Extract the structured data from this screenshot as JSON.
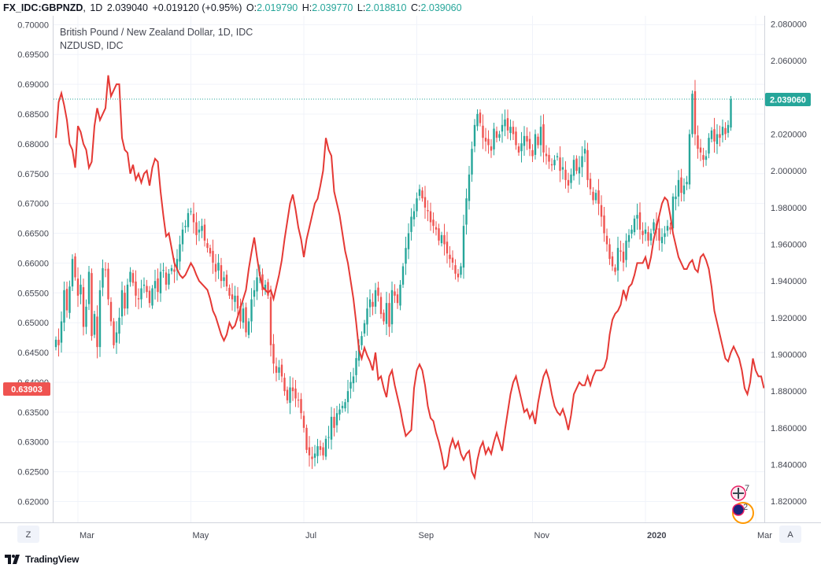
{
  "header": {
    "symbol": "FX_IDC:GBPNZD",
    "interval": "1D",
    "last": "2.039040",
    "change": "+0.019120 (+0.95%)",
    "open_label": "O:",
    "open": "2.019790",
    "high_label": "H:",
    "high": "2.039770",
    "low_label": "L:",
    "low": "2.018810",
    "close_label": "C:",
    "close": "2.039060"
  },
  "legend": {
    "main_series": "British Pound / New Zealand Dollar, 1D, IDC",
    "overlay_series": "NZDUSD, IDC"
  },
  "footer": {
    "brand": "TradingView"
  },
  "buttons": {
    "left_scale": "Z",
    "right_scale": "A"
  },
  "event_markers": [
    "7",
    "2"
  ],
  "colors": {
    "up": "#26a69a",
    "down": "#ef5350",
    "overlay_line": "#e53935",
    "last_price_badge": "#26a69a",
    "overlay_badge": "#ef5350",
    "grid": "#f0f3fa"
  },
  "chart_data": {
    "type": "candlestick",
    "left_axis": {
      "label": "NZDUSD",
      "range": [
        0.6165,
        0.7015
      ],
      "ticks": [
        "0.70000",
        "0.69500",
        "0.69000",
        "0.68500",
        "0.68000",
        "0.67500",
        "0.67000",
        "0.66500",
        "0.66000",
        "0.65500",
        "0.65000",
        "0.64500",
        "0.64000",
        "0.63500",
        "0.63000",
        "0.62500",
        "0.62000"
      ],
      "last_value_badge": "0.63903"
    },
    "right_axis": {
      "label": "GBPNZD",
      "range": [
        1.8085,
        2.0845
      ],
      "ticks": [
        "2.080000",
        "2.060000",
        "2.040000",
        "2.020000",
        "2.000000",
        "1.980000",
        "1.960000",
        "1.940000",
        "1.920000",
        "1.900000",
        "1.880000",
        "1.860000",
        "1.840000",
        "1.820000"
      ],
      "last_value_badge": "2.039060"
    },
    "x_axis": {
      "months": [
        "Mar",
        "May",
        "Jul",
        "Sep",
        "Nov",
        "2020",
        "Mar"
      ],
      "month_index": [
        8,
        49,
        90,
        131,
        173,
        214,
        254
      ]
    },
    "gbpnzd_close": [
      1.908,
      1.905,
      1.918,
      1.935,
      1.924,
      1.937,
      1.952,
      1.942,
      1.932,
      1.938,
      1.915,
      1.926,
      1.945,
      1.91,
      1.922,
      1.904,
      1.935,
      1.947,
      1.946,
      1.93,
      1.918,
      1.905,
      1.912,
      1.92,
      1.935,
      1.925,
      1.938,
      1.945,
      1.939,
      1.932,
      1.93,
      1.936,
      1.938,
      1.934,
      1.928,
      1.936,
      1.94,
      1.934,
      1.945,
      1.946,
      1.938,
      1.944,
      1.947,
      1.945,
      1.952,
      1.96,
      1.968,
      1.97,
      1.977,
      1.978,
      1.972,
      1.965,
      1.968,
      1.97,
      1.962,
      1.958,
      1.955,
      1.95,
      1.945,
      1.95,
      1.94,
      1.942,
      1.937,
      1.932,
      1.93,
      1.932,
      1.925,
      1.918,
      1.925,
      1.912,
      1.918,
      1.93,
      1.935,
      1.942,
      1.945,
      1.935,
      1.938,
      1.932,
      1.905,
      1.895,
      1.89,
      1.893,
      1.888,
      1.88,
      1.875,
      1.882,
      1.88,
      1.876,
      1.875,
      1.868,
      1.86,
      1.848,
      1.845,
      1.843,
      1.846,
      1.85,
      1.848,
      1.845,
      1.854,
      1.855,
      1.866,
      1.86,
      1.868,
      1.87,
      1.872,
      1.874,
      1.88,
      1.885,
      1.888,
      1.898,
      1.905,
      1.91,
      1.917,
      1.925,
      1.93,
      1.926,
      1.935,
      1.932,
      1.922,
      1.918,
      1.928,
      1.915,
      1.935,
      1.932,
      1.928,
      1.938,
      1.948,
      1.958,
      1.966,
      1.975,
      1.978,
      1.985,
      1.99,
      1.985,
      1.98,
      1.978,
      1.972,
      1.97,
      1.968,
      1.962,
      1.965,
      1.96,
      1.955,
      1.952,
      1.95,
      1.944,
      1.942,
      1.948,
      1.97,
      1.985,
      1.998,
      2.012,
      2.025,
      2.031,
      2.026,
      2.018,
      2.016,
      2.014,
      2.011,
      2.023,
      2.018,
      2.02,
      2.025,
      2.028,
      2.022,
      2.024,
      2.02,
      2.014,
      2.01,
      2.015,
      2.019,
      2.016,
      2.012,
      2.008,
      2.02,
      2.014,
      2.024,
      2.01,
      2.008,
      2.005,
      2.003,
      2.006,
      2.008,
      2.0,
      2.002,
      1.995,
      1.992,
      1.998,
      2.006,
      2.0,
      2.002,
      2.008,
      2.012,
      1.995,
      1.99,
      1.984,
      1.988,
      1.982,
      1.975,
      1.966,
      1.96,
      1.952,
      1.948,
      1.945,
      1.958,
      1.956,
      1.95,
      1.962,
      1.965,
      1.968,
      1.974,
      1.976,
      1.968,
      1.965,
      1.968,
      1.962,
      1.966,
      1.972,
      1.968,
      1.962,
      1.964,
      1.966,
      1.97,
      1.968,
      1.986,
      1.986,
      1.995,
      1.988,
      1.992,
      1.994,
      2.02,
      2.042,
      2.02,
      2.012,
      2.01,
      2.006,
      2.008,
      2.018,
      2.022,
      2.016,
      2.02,
      2.018,
      2.024,
      2.02,
      2.025,
      2.039
    ],
    "nzdusd_close": [
      0.681,
      0.687,
      0.6885,
      0.6865,
      0.684,
      0.68,
      0.679,
      0.676,
      0.683,
      0.682,
      0.68,
      0.679,
      0.676,
      0.677,
      0.683,
      0.686,
      0.684,
      0.685,
      0.686,
      0.6915,
      0.688,
      0.689,
      0.69,
      0.69,
      0.681,
      0.679,
      0.6785,
      0.675,
      0.6765,
      0.674,
      0.675,
      0.6735,
      0.675,
      0.6755,
      0.673,
      0.676,
      0.6775,
      0.677,
      0.672,
      0.668,
      0.6645,
      0.665,
      0.6625,
      0.66,
      0.659,
      0.658,
      0.6575,
      0.658,
      0.659,
      0.66,
      0.6592,
      0.658,
      0.657,
      0.6565,
      0.656,
      0.6555,
      0.654,
      0.652,
      0.651,
      0.6495,
      0.648,
      0.647,
      0.648,
      0.65,
      0.649,
      0.6495,
      0.651,
      0.6525,
      0.654,
      0.6555,
      0.659,
      0.6618,
      0.6643,
      0.661,
      0.658,
      0.656,
      0.6555,
      0.655,
      0.6555,
      0.654,
      0.656,
      0.658,
      0.6605,
      0.664,
      0.667,
      0.67,
      0.6715,
      0.669,
      0.666,
      0.664,
      0.661,
      0.664,
      0.666,
      0.668,
      0.67,
      0.6708,
      0.673,
      0.6755,
      0.681,
      0.679,
      0.678,
      0.672,
      0.67,
      0.668,
      0.665,
      0.662,
      0.66,
      0.657,
      0.654,
      0.65,
      0.6455,
      0.644,
      0.6458,
      0.6445,
      0.6435,
      0.642,
      0.645,
      0.6405,
      0.641,
      0.639,
      0.6375,
      0.641,
      0.642,
      0.6395,
      0.6375,
      0.6355,
      0.633,
      0.631,
      0.6315,
      0.632,
      0.639,
      0.642,
      0.643,
      0.642,
      0.6395,
      0.636,
      0.634,
      0.6335,
      0.6315,
      0.63,
      0.628,
      0.6255,
      0.626,
      0.629,
      0.6305,
      0.629,
      0.63,
      0.628,
      0.627,
      0.628,
      0.6285,
      0.625,
      0.624,
      0.627,
      0.629,
      0.63,
      0.628,
      0.629,
      0.628,
      0.63,
      0.6315,
      0.63,
      0.6285,
      0.632,
      0.635,
      0.638,
      0.64,
      0.641,
      0.639,
      0.637,
      0.635,
      0.6355,
      0.634,
      0.635,
      0.633,
      0.6365,
      0.639,
      0.641,
      0.642,
      0.6405,
      0.638,
      0.636,
      0.635,
      0.6345,
      0.6355,
      0.634,
      0.632,
      0.6345,
      0.638,
      0.639,
      0.64,
      0.6395,
      0.6395,
      0.641,
      0.6395,
      0.641,
      0.642,
      0.642,
      0.642,
      0.6425,
      0.644,
      0.648,
      0.6505,
      0.6515,
      0.652,
      0.653,
      0.6555,
      0.654,
      0.656,
      0.6565,
      0.658,
      0.66,
      0.66,
      0.66,
      0.661,
      0.659,
      0.661,
      0.664,
      0.666,
      0.668,
      0.67,
      0.671,
      0.6705,
      0.668,
      0.665,
      0.663,
      0.661,
      0.66,
      0.659,
      0.659,
      0.66,
      0.6605,
      0.659,
      0.6585,
      0.661,
      0.6615,
      0.6605,
      0.659,
      0.656,
      0.652,
      0.65,
      0.648,
      0.646,
      0.644,
      0.6435,
      0.645,
      0.646,
      0.645,
      0.644,
      0.642,
      0.639,
      0.638,
      0.64,
      0.644,
      0.642,
      0.641,
      0.641,
      0.639
    ]
  }
}
